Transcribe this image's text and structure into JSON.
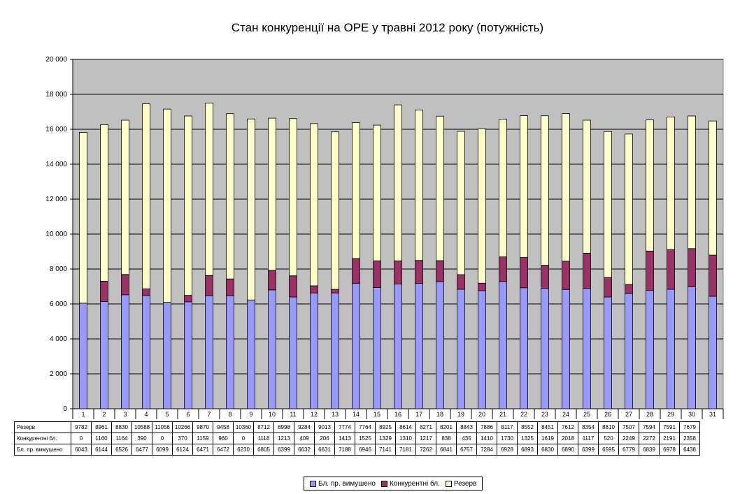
{
  "chart_data": {
    "type": "bar",
    "stacked": true,
    "title": "Стан конкуренції на ОРЕ  у травні 2012 року (потужність)",
    "xlabel": "",
    "ylabel": "",
    "ylim": [
      0,
      20000
    ],
    "yticks": [
      0,
      2000,
      4000,
      6000,
      8000,
      10000,
      12000,
      14000,
      16000,
      18000,
      20000
    ],
    "ytick_labels": [
      "0",
      "2 000",
      "4 000",
      "6 000",
      "8 000",
      "10 000",
      "12 000",
      "14 000",
      "16 000",
      "18 000",
      "20 000"
    ],
    "grid": true,
    "plot_background": "#c0c0c0",
    "legend_position": "bottom",
    "categories": [
      "1",
      "2",
      "3",
      "4",
      "5",
      "6",
      "7",
      "8",
      "9",
      "10",
      "11",
      "12",
      "13",
      "14",
      "15",
      "16",
      "17",
      "18",
      "19",
      "20",
      "21",
      "22",
      "23",
      "24",
      "25",
      "26",
      "27",
      "28",
      "29",
      "30",
      "31"
    ],
    "series": [
      {
        "name": "Бл. пр. вимушено",
        "color": "#9999ff",
        "values": [
          6043,
          6144,
          6526,
          6477,
          6099,
          6124,
          6471,
          6472,
          6230,
          6805,
          6399,
          6632,
          6631,
          7188,
          6946,
          7141,
          7181,
          7262,
          6841,
          6757,
          7284,
          6928,
          6893,
          6830,
          6890,
          6399,
          6595,
          6779,
          6839,
          6978,
          6438
        ]
      },
      {
        "name": "Конкурентні бл.",
        "color": "#993366",
        "values": [
          0,
          1160,
          1164,
          390,
          0,
          370,
          1159,
          960,
          0,
          1118,
          1213,
          409,
          206,
          1413,
          1525,
          1329,
          1310,
          1217,
          838,
          435,
          1410,
          1730,
          1325,
          1619,
          2018,
          1117,
          520,
          2249,
          2272,
          2191,
          2358
        ]
      },
      {
        "name": "Резерв",
        "color": "#ffffcc",
        "values": [
          9782,
          8961,
          8830,
          10588,
          11056,
          10266,
          9870,
          9458,
          10360,
          8712,
          8998,
          9284,
          9013,
          7774,
          7764,
          8925,
          8614,
          8271,
          8201,
          8843,
          7886,
          8117,
          8552,
          8451,
          7612,
          8354,
          8610,
          7507,
          7594,
          7591,
          7679
        ]
      }
    ],
    "table_rows": [
      {
        "label": "Резерв",
        "series_index": 2
      },
      {
        "label": "Конкурентні бл.",
        "series_index": 1
      },
      {
        "label": "Бл. пр. вимушено",
        "series_index": 0
      }
    ],
    "legend_order": [
      0,
      1,
      2
    ]
  }
}
